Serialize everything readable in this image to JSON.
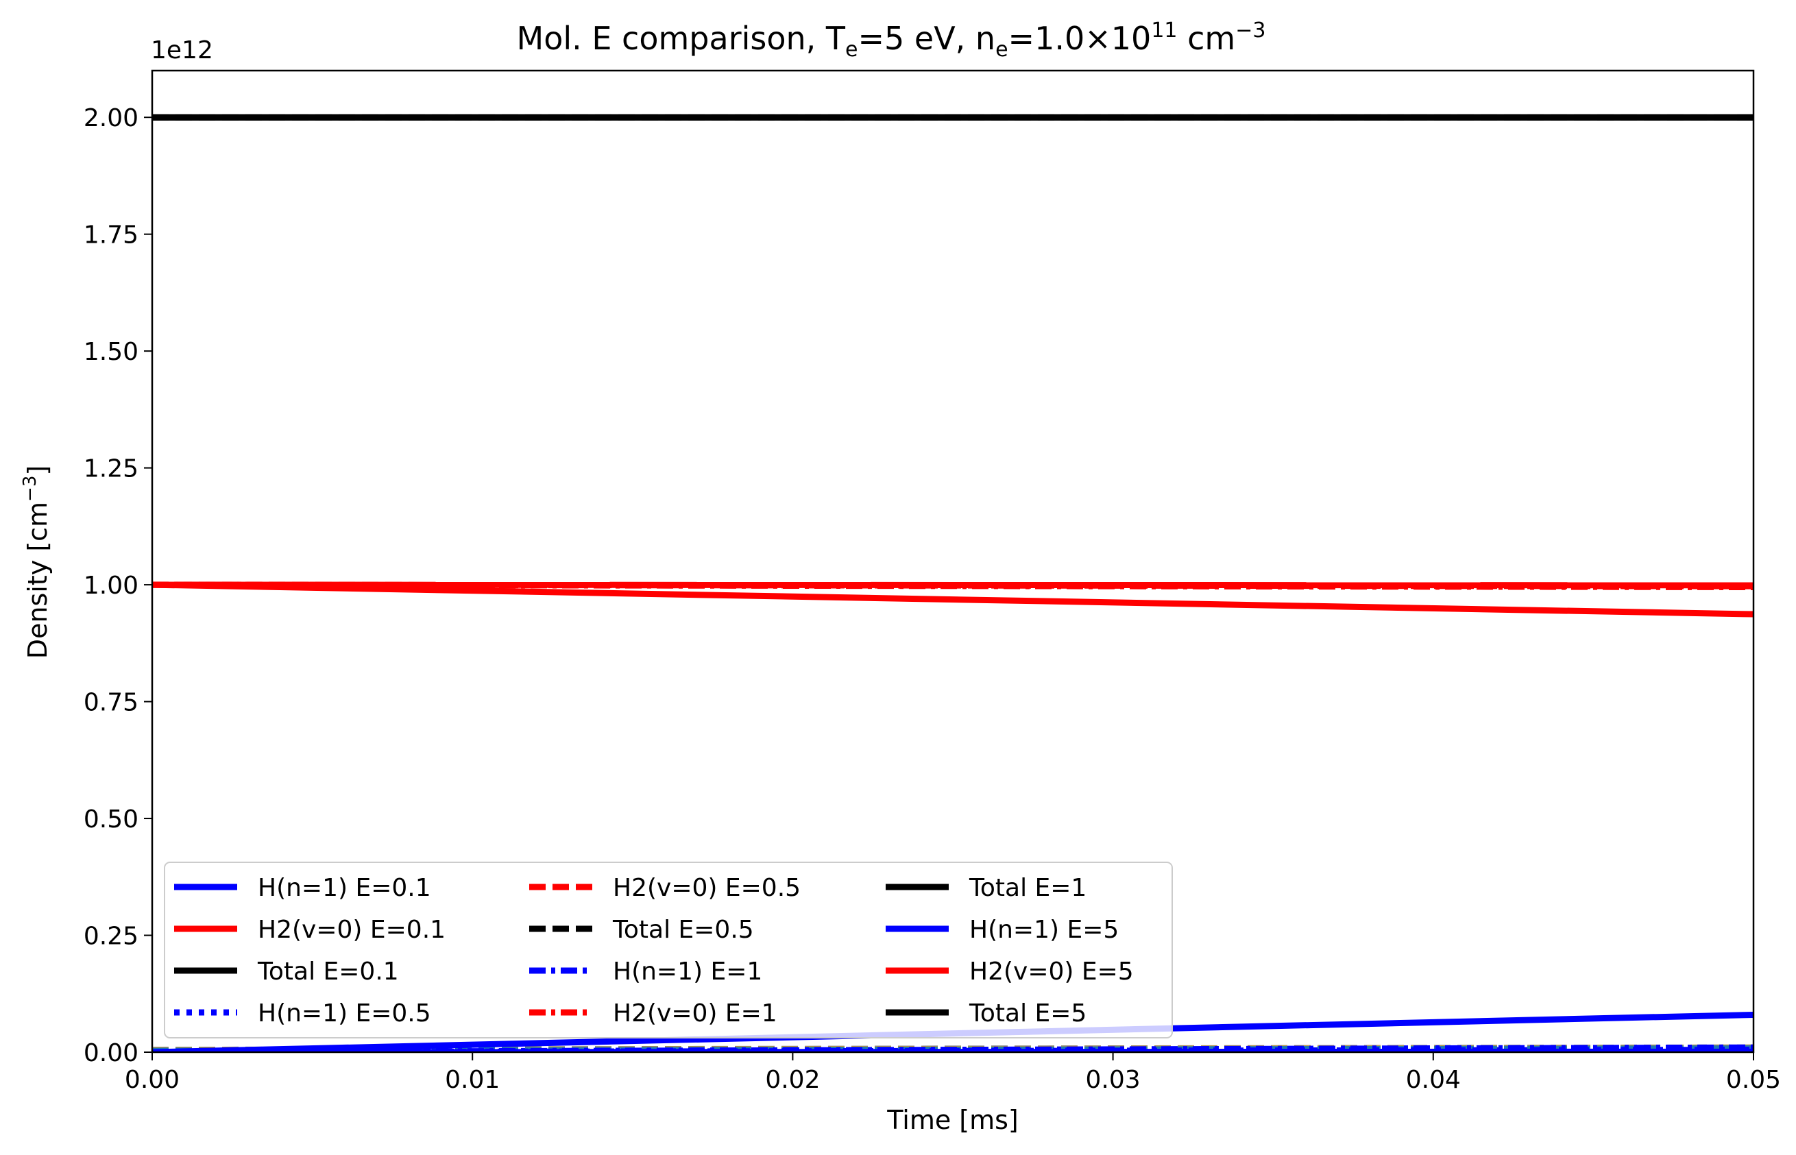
{
  "chart_data": {
    "type": "line",
    "title": "Mol. E comparison,  T",
    "title_parts": {
      "lead": "Mol. E comparison,  T",
      "te_sub": "e",
      "mid": "=5 eV, n",
      "ne_sub": "e",
      "after": "=1.0×10",
      "exp": "11",
      "unit": " cm",
      "unit_exp": "−3"
    },
    "xlabel": "Time [ms]",
    "ylabel_parts": {
      "main": "Density [cm",
      "exp": "−3",
      "close": "]"
    },
    "offset_text": "1e12",
    "xlim": [
      0,
      0.05
    ],
    "ylim": [
      0,
      2.1
    ],
    "x_ticks": [
      0.0,
      0.01,
      0.02,
      0.03,
      0.04,
      0.05
    ],
    "x_tick_labels": [
      "0.00",
      "0.01",
      "0.02",
      "0.03",
      "0.04",
      "0.05"
    ],
    "y_ticks": [
      0.0,
      0.25,
      0.5,
      0.75,
      1.0,
      1.25,
      1.5,
      1.75,
      2.0
    ],
    "y_tick_labels": [
      "0.00",
      "0.25",
      "0.50",
      "0.75",
      "1.00",
      "1.25",
      "1.50",
      "1.75",
      "2.00"
    ],
    "grid": false,
    "legend_position": "lower-left",
    "legend_columns": 3,
    "series": [
      {
        "name": "H(n=1) E=0.1",
        "color": "#0000ff",
        "dash": "solid",
        "x": [
          0,
          0.05
        ],
        "y": [
          0.0,
          0.001
        ]
      },
      {
        "name": "H2(v=0) E=0.1",
        "color": "#ff0000",
        "dash": "solid",
        "x": [
          0,
          0.05
        ],
        "y": [
          1.0,
          0.999
        ]
      },
      {
        "name": "Total E=0.1",
        "color": "#000000",
        "dash": "solid",
        "x": [
          0,
          0.05
        ],
        "y": [
          2.0,
          2.0
        ]
      },
      {
        "name": "H(n=1) E=0.5",
        "color": "#0000ff",
        "dash": "dotted",
        "x": [
          0,
          0.05
        ],
        "y": [
          0.0,
          0.005
        ]
      },
      {
        "name": "H2(v=0) E=0.5",
        "color": "#ff0000",
        "dash": "dashed",
        "x": [
          0,
          0.05
        ],
        "y": [
          1.0,
          0.997
        ]
      },
      {
        "name": "Total E=0.5",
        "color": "#000000",
        "dash": "dashed",
        "x": [
          0,
          0.05
        ],
        "y": [
          2.0,
          2.0
        ]
      },
      {
        "name": "H(n=1) E=1",
        "color": "#0000ff",
        "dash": "dashdot",
        "x": [
          0,
          0.05
        ],
        "y": [
          0.0,
          0.01
        ]
      },
      {
        "name": "H2(v=0) E=1",
        "color": "#ff0000",
        "dash": "dashdot",
        "x": [
          0,
          0.05
        ],
        "y": [
          1.0,
          0.995
        ]
      },
      {
        "name": "Total E=1",
        "color": "#000000",
        "dash": "solid",
        "x": [
          0,
          0.05
        ],
        "y": [
          2.0,
          2.0
        ]
      },
      {
        "name": "H(n=1) E=5",
        "color": "#0000ff",
        "dash": "solid",
        "x": [
          0,
          0.05
        ],
        "y": [
          0.0,
          0.08
        ]
      },
      {
        "name": "H2(v=0) E=5",
        "color": "#ff0000",
        "dash": "solid",
        "x": [
          0,
          0.05
        ],
        "y": [
          1.0,
          0.937
        ]
      },
      {
        "name": "Total E=5",
        "color": "#000000",
        "dash": "solid",
        "x": [
          0,
          0.05
        ],
        "y": [
          2.0,
          2.0
        ]
      }
    ],
    "minor_traces": [
      {
        "color": "#808080",
        "x": [
          0,
          0.05
        ],
        "y": [
          0.005,
          0.01
        ]
      },
      {
        "color": "#e8a317",
        "x": [
          0,
          0.05
        ],
        "y": [
          0.004,
          0.009
        ]
      },
      {
        "color": "#1f77b4",
        "x": [
          0,
          0.05
        ],
        "y": [
          0.003,
          0.008
        ]
      }
    ]
  }
}
